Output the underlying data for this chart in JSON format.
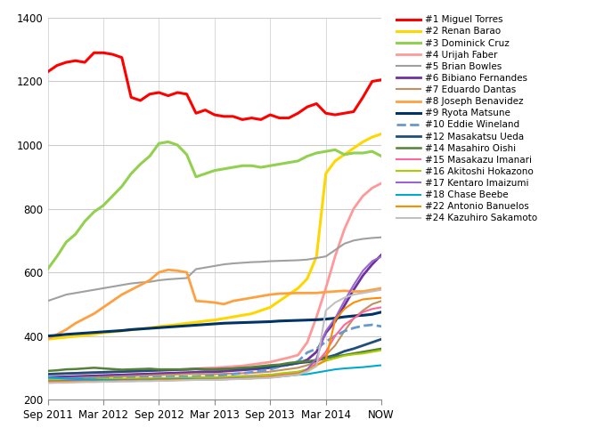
{
  "title": "",
  "x_labels": [
    "Sep 2011",
    "Mar 2012",
    "Sep 2012",
    "Mar 2013",
    "Sep 2013",
    "Mar 2014",
    "NOW"
  ],
  "x_ticks": [
    0,
    6,
    12,
    18,
    24,
    30,
    36
  ],
  "ylim": [
    200,
    1400
  ],
  "yticks": [
    200,
    400,
    600,
    800,
    1000,
    1200,
    1400
  ],
  "series": [
    {
      "label": "#1 Miguel Torres",
      "color": "#FF0000",
      "linestyle": "-",
      "linewidth": 2.2,
      "x": [
        0,
        1,
        2,
        3,
        4,
        5,
        6,
        7,
        8,
        9,
        10,
        11,
        12,
        13,
        14,
        15,
        16,
        17,
        18,
        19,
        20,
        21,
        22,
        23,
        24,
        25,
        26,
        27,
        28,
        29,
        30,
        31,
        32,
        33,
        34,
        35,
        36
      ],
      "y": [
        1230,
        1250,
        1260,
        1265,
        1260,
        1290,
        1290,
        1285,
        1275,
        1150,
        1140,
        1160,
        1165,
        1155,
        1165,
        1160,
        1100,
        1110,
        1095,
        1090,
        1090,
        1080,
        1085,
        1080,
        1095,
        1085,
        1085,
        1100,
        1120,
        1130,
        1100,
        1095,
        1100,
        1105,
        1150,
        1200,
        1205
      ]
    },
    {
      "label": "#2 Renan Barao",
      "color": "#FFD700",
      "linestyle": "-",
      "linewidth": 2.2,
      "x": [
        0,
        1,
        2,
        3,
        4,
        5,
        6,
        7,
        8,
        9,
        10,
        11,
        12,
        13,
        14,
        15,
        16,
        17,
        18,
        19,
        20,
        21,
        22,
        23,
        24,
        25,
        26,
        27,
        28,
        29,
        30,
        31,
        32,
        33,
        34,
        35,
        36
      ],
      "y": [
        390,
        393,
        396,
        399,
        402,
        405,
        410,
        413,
        416,
        419,
        422,
        425,
        430,
        433,
        436,
        440,
        443,
        447,
        450,
        455,
        460,
        465,
        470,
        480,
        490,
        510,
        530,
        550,
        580,
        650,
        910,
        950,
        970,
        990,
        1010,
        1025,
        1035
      ]
    },
    {
      "label": "#3 Dominick Cruz",
      "color": "#92D050",
      "linestyle": "-",
      "linewidth": 2.2,
      "x": [
        0,
        1,
        2,
        3,
        4,
        5,
        6,
        7,
        8,
        9,
        10,
        11,
        12,
        13,
        14,
        15,
        16,
        17,
        18,
        19,
        20,
        21,
        22,
        23,
        24,
        25,
        26,
        27,
        28,
        29,
        30,
        31,
        32,
        33,
        34,
        35,
        36
      ],
      "y": [
        610,
        650,
        695,
        720,
        760,
        790,
        810,
        840,
        870,
        910,
        940,
        965,
        1005,
        1010,
        1000,
        970,
        900,
        910,
        920,
        925,
        930,
        935,
        935,
        930,
        935,
        940,
        945,
        950,
        965,
        975,
        980,
        985,
        970,
        975,
        975,
        980,
        965
      ]
    },
    {
      "label": "#4 Urijah Faber",
      "color": "#FF9999",
      "linestyle": "-",
      "linewidth": 2.0,
      "x": [
        0,
        1,
        2,
        3,
        4,
        5,
        6,
        7,
        8,
        9,
        10,
        11,
        12,
        13,
        14,
        15,
        16,
        17,
        18,
        19,
        20,
        21,
        22,
        23,
        24,
        25,
        26,
        27,
        28,
        29,
        30,
        31,
        32,
        33,
        34,
        35,
        36
      ],
      "y": [
        280,
        281,
        282,
        283,
        284,
        285,
        286,
        287,
        288,
        289,
        290,
        291,
        292,
        293,
        294,
        295,
        297,
        299,
        300,
        302,
        304,
        306,
        310,
        314,
        318,
        325,
        332,
        340,
        380,
        460,
        550,
        650,
        735,
        800,
        840,
        865,
        880
      ]
    },
    {
      "label": "#5 Brian Bowles",
      "color": "#A0A0A0",
      "linestyle": "-",
      "linewidth": 1.5,
      "x": [
        0,
        1,
        2,
        3,
        4,
        5,
        6,
        7,
        8,
        9,
        10,
        11,
        12,
        13,
        14,
        15,
        16,
        17,
        18,
        19,
        20,
        21,
        22,
        23,
        24,
        25,
        26,
        27,
        28,
        29,
        30,
        31,
        32,
        33,
        34,
        35,
        36
      ],
      "y": [
        510,
        520,
        530,
        535,
        540,
        545,
        550,
        555,
        560,
        565,
        568,
        570,
        575,
        578,
        580,
        582,
        610,
        615,
        620,
        625,
        628,
        630,
        632,
        633,
        635,
        636,
        637,
        638,
        640,
        645,
        650,
        670,
        690,
        700,
        705,
        708,
        710
      ]
    },
    {
      "label": "#6 Bibiano Fernandes",
      "color": "#7030A0",
      "linestyle": "-",
      "linewidth": 2.0,
      "x": [
        0,
        1,
        2,
        3,
        4,
        5,
        6,
        7,
        8,
        9,
        10,
        11,
        12,
        13,
        14,
        15,
        16,
        17,
        18,
        19,
        20,
        21,
        22,
        23,
        24,
        25,
        26,
        27,
        28,
        29,
        30,
        31,
        32,
        33,
        34,
        35,
        36
      ],
      "y": [
        270,
        271,
        272,
        273,
        274,
        275,
        276,
        277,
        278,
        279,
        280,
        281,
        282,
        283,
        284,
        285,
        286,
        287,
        287,
        289,
        291,
        293,
        295,
        297,
        300,
        305,
        310,
        315,
        325,
        350,
        410,
        445,
        495,
        545,
        590,
        625,
        655
      ]
    },
    {
      "label": "#7 Eduardo Dantas",
      "color": "#C09060",
      "linestyle": "-",
      "linewidth": 1.5,
      "x": [
        0,
        1,
        2,
        3,
        4,
        5,
        6,
        7,
        8,
        9,
        10,
        11,
        12,
        13,
        14,
        15,
        16,
        17,
        18,
        19,
        20,
        21,
        22,
        23,
        24,
        25,
        26,
        27,
        28,
        29,
        30,
        31,
        32,
        33,
        34,
        35,
        36
      ],
      "y": [
        265,
        266,
        267,
        268,
        269,
        270,
        271,
        272,
        273,
        274,
        275,
        276,
        277,
        278,
        279,
        280,
        281,
        280,
        280,
        281,
        282,
        283,
        284,
        286,
        288,
        292,
        296,
        300,
        308,
        320,
        340,
        370,
        415,
        455,
        480,
        500,
        510
      ]
    },
    {
      "label": "#8 Joseph Benavidez",
      "color": "#FFA040",
      "linestyle": "-",
      "linewidth": 2.0,
      "x": [
        0,
        1,
        2,
        3,
        4,
        5,
        6,
        7,
        8,
        9,
        10,
        11,
        12,
        13,
        14,
        15,
        16,
        17,
        18,
        19,
        20,
        21,
        22,
        23,
        24,
        25,
        26,
        27,
        28,
        29,
        30,
        31,
        32,
        33,
        34,
        35,
        36
      ],
      "y": [
        390,
        405,
        420,
        440,
        455,
        470,
        490,
        510,
        530,
        545,
        560,
        575,
        600,
        608,
        605,
        600,
        510,
        508,
        505,
        500,
        510,
        515,
        520,
        525,
        530,
        533,
        534,
        535,
        535,
        535,
        538,
        540,
        542,
        540,
        540,
        545,
        550
      ]
    },
    {
      "label": "#9 Ryota Matsune",
      "color": "#003366",
      "linestyle": "-",
      "linewidth": 2.2,
      "x": [
        0,
        1,
        2,
        3,
        4,
        5,
        6,
        7,
        8,
        9,
        10,
        11,
        12,
        13,
        14,
        15,
        16,
        17,
        18,
        19,
        20,
        21,
        22,
        23,
        24,
        25,
        26,
        27,
        28,
        29,
        30,
        31,
        32,
        33,
        34,
        35,
        36
      ],
      "y": [
        400,
        402,
        405,
        407,
        409,
        411,
        413,
        415,
        417,
        420,
        422,
        424,
        426,
        428,
        430,
        432,
        434,
        436,
        438,
        440,
        441,
        442,
        443,
        444,
        445,
        447,
        448,
        449,
        450,
        451,
        453,
        456,
        460,
        463,
        465,
        468,
        475
      ]
    },
    {
      "label": "#10 Eddie Wineland",
      "color": "#6699CC",
      "linestyle": "--",
      "linewidth": 2.0,
      "x": [
        0,
        1,
        2,
        3,
        4,
        5,
        6,
        7,
        8,
        9,
        10,
        11,
        12,
        13,
        14,
        15,
        16,
        17,
        18,
        19,
        20,
        21,
        22,
        23,
        24,
        25,
        26,
        27,
        28,
        29,
        30,
        31,
        32,
        33,
        34,
        35,
        36
      ],
      "y": [
        265,
        265,
        266,
        266,
        267,
        267,
        268,
        268,
        269,
        269,
        270,
        270,
        271,
        271,
        272,
        272,
        273,
        274,
        275,
        277,
        280,
        283,
        286,
        290,
        295,
        303,
        310,
        320,
        348,
        360,
        382,
        400,
        415,
        425,
        432,
        435,
        430
      ]
    },
    {
      "label": "#12 Masakatsu Ueda",
      "color": "#1F4E79",
      "linestyle": "-",
      "linewidth": 2.0,
      "x": [
        0,
        1,
        2,
        3,
        4,
        5,
        6,
        7,
        8,
        9,
        10,
        11,
        12,
        13,
        14,
        15,
        16,
        17,
        18,
        19,
        20,
        21,
        22,
        23,
        24,
        25,
        26,
        27,
        28,
        29,
        30,
        31,
        32,
        33,
        34,
        35,
        36
      ],
      "y": [
        280,
        281,
        282,
        283,
        284,
        285,
        286,
        287,
        288,
        289,
        290,
        291,
        292,
        293,
        294,
        295,
        296,
        295,
        295,
        296,
        297,
        298,
        299,
        301,
        303,
        307,
        310,
        315,
        318,
        322,
        332,
        340,
        352,
        360,
        370,
        380,
        390
      ]
    },
    {
      "label": "#14 Masahiro Oishi",
      "color": "#538135",
      "linestyle": "-",
      "linewidth": 1.8,
      "x": [
        0,
        1,
        2,
        3,
        4,
        5,
        6,
        7,
        8,
        9,
        10,
        11,
        12,
        13,
        14,
        15,
        16,
        17,
        18,
        19,
        20,
        21,
        22,
        23,
        24,
        25,
        26,
        27,
        28,
        29,
        30,
        31,
        32,
        33,
        34,
        35,
        36
      ],
      "y": [
        290,
        292,
        295,
        296,
        298,
        300,
        298,
        296,
        294,
        295,
        296,
        297,
        295,
        295,
        295,
        295,
        296,
        295,
        295,
        295,
        298,
        300,
        302,
        305,
        308,
        310,
        315,
        318,
        320,
        325,
        330,
        335,
        340,
        345,
        350,
        355,
        360
      ]
    },
    {
      "label": "#15 Masakazu Imanari",
      "color": "#FF6699",
      "linestyle": "-",
      "linewidth": 1.5,
      "x": [
        0,
        1,
        2,
        3,
        4,
        5,
        6,
        7,
        8,
        9,
        10,
        11,
        12,
        13,
        14,
        15,
        16,
        17,
        18,
        19,
        20,
        21,
        22,
        23,
        24,
        25,
        26,
        27,
        28,
        29,
        30,
        31,
        32,
        33,
        34,
        35,
        36
      ],
      "y": [
        260,
        260,
        261,
        261,
        262,
        262,
        263,
        263,
        264,
        264,
        265,
        265,
        266,
        266,
        267,
        267,
        268,
        268,
        268,
        270,
        272,
        274,
        275,
        277,
        278,
        280,
        283,
        285,
        295,
        315,
        350,
        400,
        435,
        455,
        475,
        485,
        490
      ]
    },
    {
      "label": "#16 Akitoshi Hokazono",
      "color": "#AACC00",
      "linestyle": "-",
      "linewidth": 1.5,
      "x": [
        0,
        1,
        2,
        3,
        4,
        5,
        6,
        7,
        8,
        9,
        10,
        11,
        12,
        13,
        14,
        15,
        16,
        17,
        18,
        19,
        20,
        21,
        22,
        23,
        24,
        25,
        26,
        27,
        28,
        29,
        30,
        31,
        32,
        33,
        34,
        35,
        36
      ],
      "y": [
        262,
        262,
        263,
        263,
        264,
        264,
        265,
        265,
        266,
        266,
        267,
        267,
        268,
        268,
        269,
        269,
        270,
        270,
        270,
        271,
        272,
        273,
        274,
        276,
        278,
        282,
        285,
        288,
        295,
        308,
        322,
        330,
        338,
        342,
        345,
        350,
        355
      ]
    },
    {
      "label": "#17 Kentaro Imaizumi",
      "color": "#9966CC",
      "linestyle": "-",
      "linewidth": 1.5,
      "x": [
        0,
        1,
        2,
        3,
        4,
        5,
        6,
        7,
        8,
        9,
        10,
        11,
        12,
        13,
        14,
        15,
        16,
        17,
        18,
        19,
        20,
        21,
        22,
        23,
        24,
        25,
        26,
        27,
        28,
        29,
        30,
        31,
        32,
        33,
        34,
        35,
        36
      ],
      "y": [
        258,
        258,
        259,
        259,
        260,
        260,
        261,
        261,
        262,
        262,
        263,
        263,
        264,
        264,
        265,
        265,
        265,
        265,
        265,
        266,
        267,
        268,
        269,
        270,
        272,
        275,
        278,
        280,
        295,
        330,
        415,
        455,
        510,
        560,
        605,
        635,
        650
      ]
    },
    {
      "label": "#18 Chase Beebe",
      "color": "#00AACC",
      "linestyle": "-",
      "linewidth": 1.5,
      "x": [
        0,
        1,
        2,
        3,
        4,
        5,
        6,
        7,
        8,
        9,
        10,
        11,
        12,
        13,
        14,
        15,
        16,
        17,
        18,
        19,
        20,
        21,
        22,
        23,
        24,
        25,
        26,
        27,
        28,
        29,
        30,
        31,
        32,
        33,
        34,
        35,
        36
      ],
      "y": [
        270,
        268,
        266,
        265,
        264,
        263,
        262,
        261,
        260,
        260,
        261,
        262,
        262,
        263,
        263,
        264,
        264,
        263,
        263,
        264,
        265,
        266,
        267,
        268,
        270,
        272,
        275,
        278,
        280,
        285,
        290,
        295,
        298,
        300,
        302,
        305,
        308
      ]
    },
    {
      "label": "#22 Antonio Banuelos",
      "color": "#FF8C00",
      "linestyle": "-",
      "linewidth": 1.5,
      "x": [
        0,
        1,
        2,
        3,
        4,
        5,
        6,
        7,
        8,
        9,
        10,
        11,
        12,
        13,
        14,
        15,
        16,
        17,
        18,
        19,
        20,
        21,
        22,
        23,
        24,
        25,
        26,
        27,
        28,
        29,
        30,
        31,
        32,
        33,
        34,
        35,
        36
      ],
      "y": [
        255,
        255,
        256,
        256,
        257,
        257,
        258,
        258,
        259,
        259,
        260,
        260,
        261,
        261,
        262,
        262,
        263,
        263,
        263,
        264,
        265,
        266,
        267,
        269,
        271,
        274,
        277,
        280,
        290,
        308,
        325,
        450,
        485,
        505,
        515,
        518,
        520
      ]
    },
    {
      "label": "#24 Kazuhiro Sakamoto",
      "color": "#C0C0C0",
      "linestyle": "-",
      "linewidth": 1.5,
      "x": [
        0,
        1,
        2,
        3,
        4,
        5,
        6,
        7,
        8,
        9,
        10,
        11,
        12,
        13,
        14,
        15,
        16,
        17,
        18,
        19,
        20,
        21,
        22,
        23,
        24,
        25,
        26,
        27,
        28,
        29,
        30,
        31,
        32,
        33,
        34,
        35,
        36
      ],
      "y": [
        252,
        253,
        253,
        254,
        255,
        255,
        256,
        256,
        257,
        257,
        258,
        258,
        259,
        259,
        260,
        261,
        262,
        262,
        262,
        263,
        264,
        265,
        266,
        267,
        268,
        272,
        275,
        278,
        288,
        305,
        480,
        505,
        520,
        530,
        535,
        540,
        545
      ]
    }
  ]
}
